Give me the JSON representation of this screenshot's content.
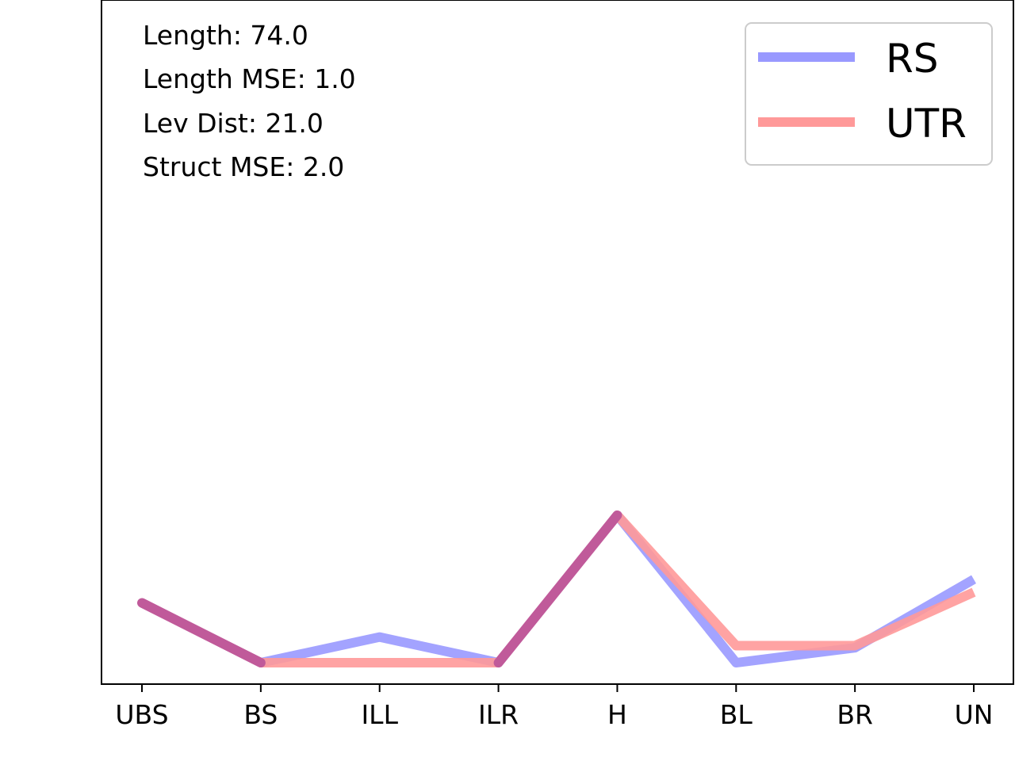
{
  "chart_data": {
    "type": "line",
    "categories": [
      "UBS",
      "BS",
      "ILL",
      "ILR",
      "H",
      "BL",
      "BR",
      "UN"
    ],
    "series": [
      {
        "name": "RS",
        "color": "#9999ff",
        "values": [
          2.8,
          0.0,
          1.2,
          0.0,
          6.9,
          0.0,
          0.7,
          3.9
        ]
      },
      {
        "name": "UTR",
        "color": "#ff9999",
        "values": [
          2.8,
          0.0,
          0.0,
          0.0,
          6.9,
          0.8,
          0.8,
          3.3
        ]
      }
    ],
    "overlap_color": "#c05a9a",
    "ylim": [
      -1.0,
      31.0
    ],
    "show_yticks": false,
    "grid": false,
    "legend_position": "top-right",
    "annotations": [
      "Length: 74.0",
      "Length MSE: 1.0",
      "Lev Dist: 21.0",
      "Struct MSE: 2.0"
    ]
  }
}
